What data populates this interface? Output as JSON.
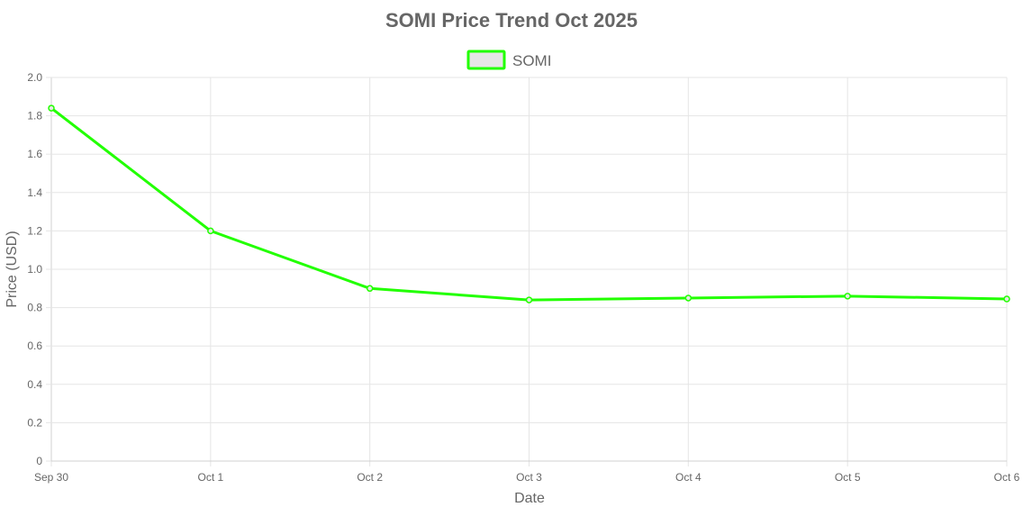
{
  "chart_data": {
    "type": "line",
    "title": "SOMI Price Trend Oct 2025",
    "xlabel": "Date",
    "ylabel": "Price (USD)",
    "categories": [
      "Sep 30",
      "Oct 1",
      "Oct 2",
      "Oct 3",
      "Oct 4",
      "Oct 5",
      "Oct 6"
    ],
    "series": [
      {
        "name": "SOMI",
        "values": [
          1.84,
          1.2,
          0.9,
          0.84,
          0.85,
          0.86,
          0.845
        ],
        "color": "#22ff00",
        "legend_fill": "#e6e6e6"
      }
    ],
    "ylim": [
      0,
      2.0
    ],
    "yticks": [
      "0",
      "0.2",
      "0.4",
      "0.6",
      "0.8",
      "1.0",
      "1.2",
      "1.4",
      "1.6",
      "1.8",
      "2.0"
    ],
    "grid": true,
    "legend_position": "top-center"
  }
}
